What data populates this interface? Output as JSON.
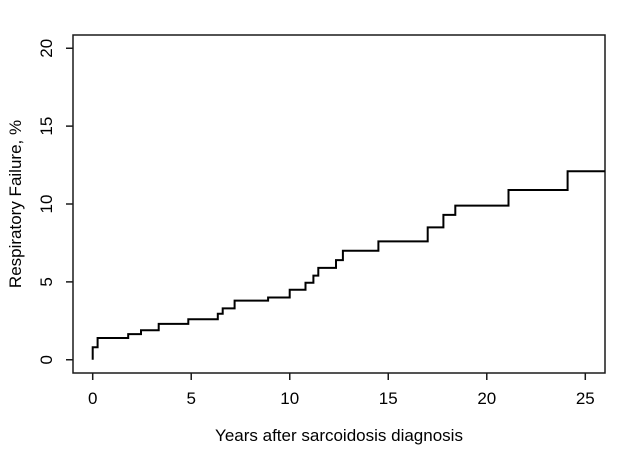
{
  "page": {
    "background_color": "#ffffff",
    "title": ""
  },
  "chart_data": {
    "type": "line",
    "subtype": "step",
    "title": "",
    "xlabel": "Years after sarcoidosis diagnosis",
    "ylabel": "Respiratory Failure, %",
    "xticks": [
      0,
      5,
      10,
      15,
      20,
      25
    ],
    "yticks": [
      0,
      5,
      10,
      15,
      20
    ],
    "xlim": [
      -1.0,
      26.0
    ],
    "ylim": [
      -0.85,
      20.85
    ],
    "x_end": 26.0,
    "grid": "off",
    "legend": "none",
    "line_color": "#000000",
    "axis_color": "#1a1a1a",
    "line_width": 2,
    "steps": [
      [
        0.0,
        0.0
      ],
      [
        0.0,
        0.8
      ],
      [
        0.25,
        1.4
      ],
      [
        1.8,
        1.65
      ],
      [
        2.45,
        1.9
      ],
      [
        3.35,
        2.3
      ],
      [
        4.85,
        2.6
      ],
      [
        6.35,
        2.95
      ],
      [
        6.6,
        3.3
      ],
      [
        7.2,
        3.8
      ],
      [
        8.9,
        4.0
      ],
      [
        10.0,
        4.5
      ],
      [
        10.8,
        4.95
      ],
      [
        11.2,
        5.4
      ],
      [
        11.45,
        5.9
      ],
      [
        12.35,
        6.4
      ],
      [
        12.7,
        7.0
      ],
      [
        14.5,
        7.6
      ],
      [
        17.0,
        8.5
      ],
      [
        17.8,
        9.3
      ],
      [
        18.4,
        9.9
      ],
      [
        21.1,
        10.9
      ],
      [
        24.1,
        12.1
      ]
    ]
  }
}
